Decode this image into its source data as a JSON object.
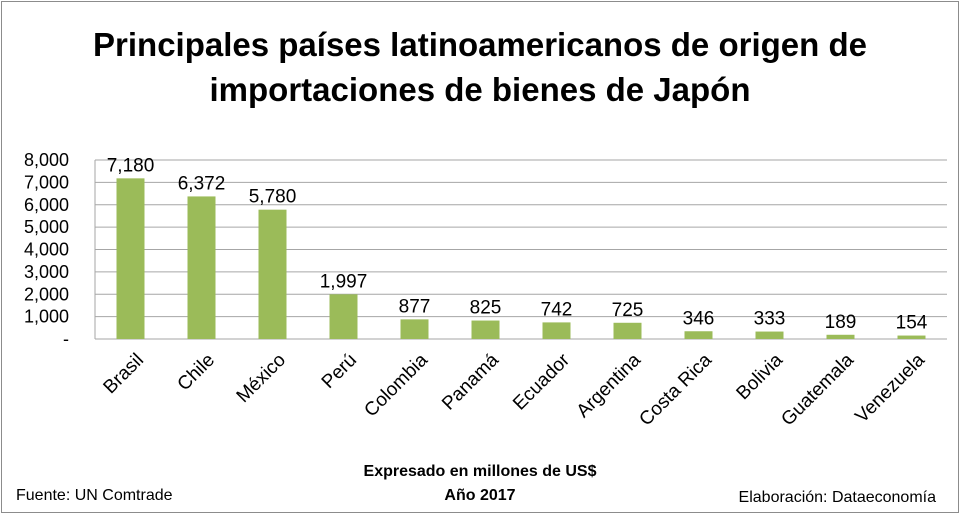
{
  "chart_data": {
    "type": "bar",
    "title": "Principales países latinoamericanos de origen de importaciones de bienes de Japón",
    "title_lines": [
      "Principales países latinoamericanos de origen de",
      "importaciones de bienes de Japón"
    ],
    "xlabel": "Expresado en millones de US$",
    "subtitle": "Año 2017",
    "ylabel": "",
    "categories": [
      "Brasil",
      "Chile",
      "México",
      "Perú",
      "Colombia",
      "Panamá",
      "Ecuador",
      "Argentina",
      "Costa Rica",
      "Bolivia",
      "Guatemala",
      "Venezuela"
    ],
    "values": [
      7180,
      6372,
      5780,
      1997,
      877,
      825,
      742,
      725,
      346,
      333,
      189,
      154
    ],
    "value_labels": [
      "7,180",
      "6,372",
      "5,780",
      "1,997",
      "877",
      "825",
      "742",
      "725",
      "346",
      "333",
      "189",
      "154"
    ],
    "ylim": [
      0,
      8000
    ],
    "yticks": [
      0,
      1000,
      2000,
      3000,
      4000,
      5000,
      6000,
      7000,
      8000
    ],
    "ytick_labels": [
      "-",
      "1,000",
      "2,000",
      "3,000",
      "4,000",
      "5,000",
      "6,000",
      "7,000",
      "8,000"
    ],
    "grid": true,
    "legend": "none",
    "bar_color": "#9bbb59"
  },
  "footer": {
    "source": "Fuente: UN Comtrade",
    "credit": "Elaboración: Dataeconomía"
  }
}
